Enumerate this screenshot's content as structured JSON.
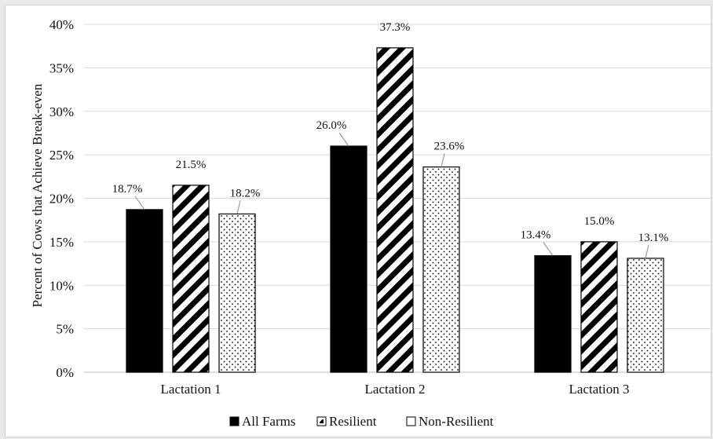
{
  "chart_data": {
    "type": "bar",
    "categories": [
      "Lactation 1",
      "Lactation 2",
      "Lactation 3"
    ],
    "series": [
      {
        "name": "All Farms",
        "values": [
          18.7,
          26.0,
          13.4
        ],
        "labels": [
          "18.7%",
          "26.0%",
          "13.4%"
        ],
        "pattern": "solid"
      },
      {
        "name": "Resilient",
        "values": [
          21.5,
          37.3,
          15.0
        ],
        "labels": [
          "21.5%",
          "37.3%",
          "15.0%"
        ],
        "pattern": "diagonal-stripes"
      },
      {
        "name": "Non-Resilient",
        "values": [
          18.2,
          23.6,
          13.1
        ],
        "labels": [
          "18.2%",
          "23.6%",
          "13.1%"
        ],
        "pattern": "dots"
      }
    ],
    "title": "",
    "xlabel": "",
    "ylabel": "Percent of Cows that Achieve Break-even",
    "ylim": [
      0,
      40
    ],
    "yticks": [
      "0%",
      "5%",
      "10%",
      "15%",
      "20%",
      "25%",
      "30%",
      "35%",
      "40%"
    ],
    "grid": true,
    "legend_position": "bottom",
    "colors": {
      "bar_fill": "#000000",
      "grid": "#d9d9d9",
      "background": "#ffffff"
    }
  }
}
